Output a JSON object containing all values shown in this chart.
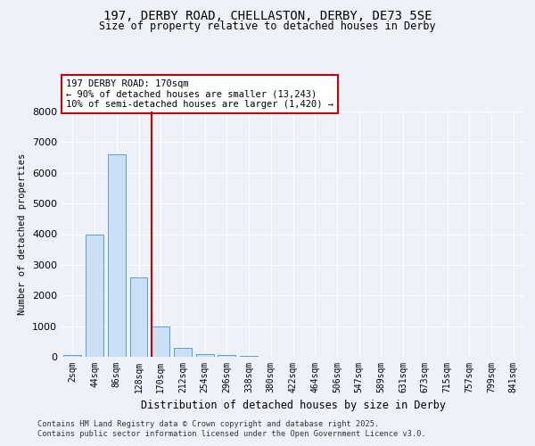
{
  "title_line1": "197, DERBY ROAD, CHELLASTON, DERBY, DE73 5SE",
  "title_line2": "Size of property relative to detached houses in Derby",
  "xlabel": "Distribution of detached houses by size in Derby",
  "ylabel": "Number of detached properties",
  "categories": [
    "2sqm",
    "44sqm",
    "86sqm",
    "128sqm",
    "170sqm",
    "212sqm",
    "254sqm",
    "296sqm",
    "338sqm",
    "380sqm",
    "422sqm",
    "464sqm",
    "506sqm",
    "547sqm",
    "589sqm",
    "631sqm",
    "673sqm",
    "715sqm",
    "757sqm",
    "799sqm",
    "841sqm"
  ],
  "values": [
    50,
    4000,
    6600,
    2600,
    1000,
    300,
    100,
    50,
    30,
    10,
    5,
    2,
    1,
    0,
    0,
    0,
    0,
    0,
    0,
    0,
    0
  ],
  "highlight_index": 4,
  "bar_color": "#cce0f5",
  "bar_edge_color": "#5b9bd5",
  "highlight_line_color": "#cc0000",
  "annotation_text": "197 DERBY ROAD: 170sqm\n← 90% of detached houses are smaller (13,243)\n10% of semi-detached houses are larger (1,420) →",
  "annotation_box_color": "#cc0000",
  "ylim": [
    0,
    8000
  ],
  "yticks": [
    0,
    1000,
    2000,
    3000,
    4000,
    5000,
    6000,
    7000,
    8000
  ],
  "footer_line1": "Contains HM Land Registry data © Crown copyright and database right 2025.",
  "footer_line2": "Contains public sector information licensed under the Open Government Licence v3.0.",
  "bg_color": "#eef2f8",
  "plot_bg_color": "#eef2f8"
}
